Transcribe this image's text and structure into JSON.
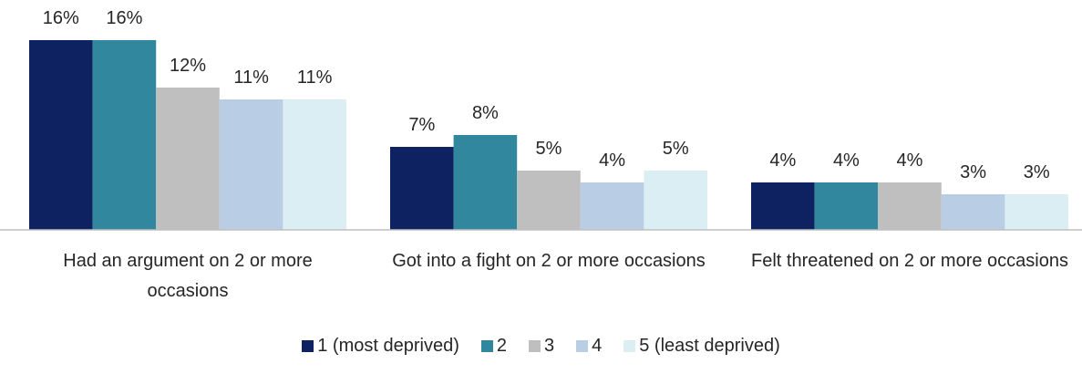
{
  "chart_data": {
    "type": "bar",
    "categories": [
      "Had an argument on 2 or more occasions",
      "Got into a fight on 2 or more occasions",
      "Felt threatened on 2 or more occasions"
    ],
    "series": [
      {
        "name": "1 (most deprived)",
        "color": "#0e2160",
        "values": [
          16,
          7,
          4
        ],
        "value_labels": [
          "16%",
          "7%",
          "4%"
        ]
      },
      {
        "name": "2",
        "color": "#31879d",
        "values": [
          16,
          8,
          4
        ],
        "value_labels": [
          "16%",
          "8%",
          "4%"
        ]
      },
      {
        "name": "3",
        "color": "#bfbfbf",
        "values": [
          12,
          5,
          4
        ],
        "value_labels": [
          "12%",
          "5%",
          "4%"
        ]
      },
      {
        "name": "4",
        "color": "#b9cde5",
        "values": [
          11,
          4,
          3
        ],
        "value_labels": [
          "11%",
          "4%",
          "3%"
        ]
      },
      {
        "name": "5 (least deprived)",
        "color": "#dbeef4",
        "values": [
          11,
          5,
          3
        ],
        "value_labels": [
          "11%",
          "5%",
          "3%"
        ]
      }
    ],
    "ylim": [
      0,
      16
    ],
    "legend": "bottom"
  }
}
